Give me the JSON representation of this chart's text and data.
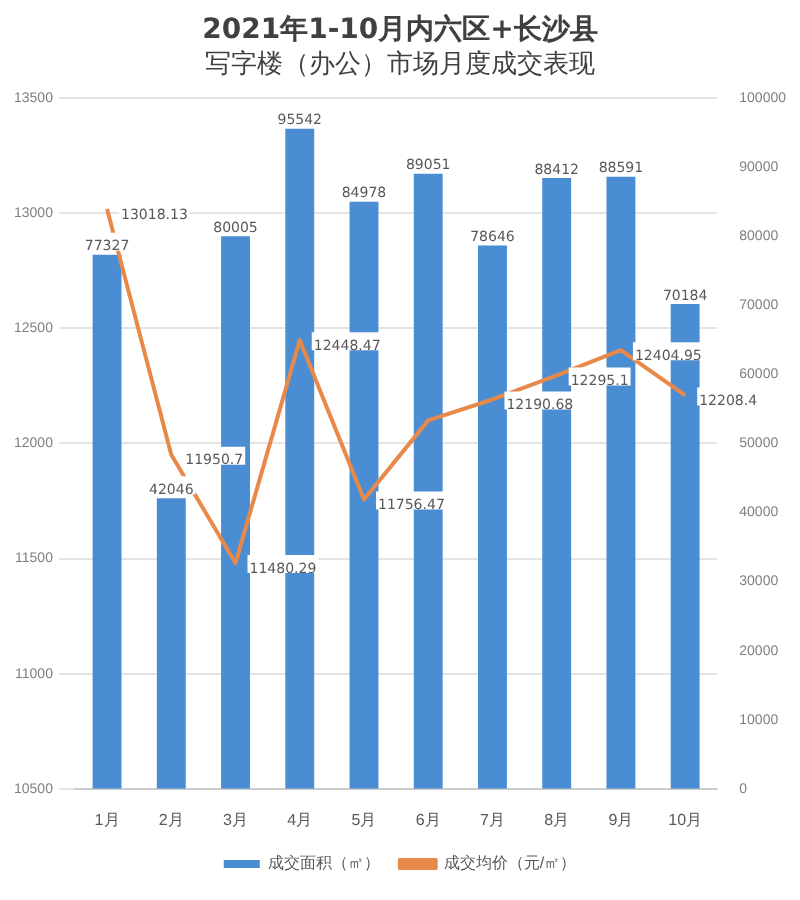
{
  "chart_data": {
    "type": "bar",
    "title": "2021年1-10月内六区+长沙县",
    "subtitle": "写字楼（办公）市场月度成交表现",
    "categories": [
      "1月",
      "2月",
      "3月",
      "4月",
      "5月",
      "6月",
      "7月",
      "8月",
      "9月",
      "10月"
    ],
    "series": [
      {
        "name": "成交面积（㎡）",
        "axis": "y2",
        "color": "#4a8dd2",
        "values": [
          77327,
          42046,
          80005,
          95542,
          84978,
          89051,
          78646,
          88412,
          88591,
          70184
        ],
        "value_labels": [
          "77327",
          "42046",
          "80005",
          "95542",
          "84978",
          "89051",
          "78646",
          "88412",
          "88591",
          "70184"
        ]
      },
      {
        "name": "成交均价（元/㎡）",
        "type": "line",
        "color": "#e8894a",
        "values": [
          13018.13,
          11950.7,
          11480.29,
          12448.47,
          11756.47,
          12100,
          12190.68,
          12295.1,
          12404.95,
          12208.4
        ],
        "value_labels": [
          "13018.13",
          "11950.7",
          "11480.29",
          "12448.47",
          "11756.47",
          null,
          "12190.68",
          "12295.1",
          "12404.95",
          "12208.4"
        ]
      }
    ],
    "ylim": [
      10500,
      13500
    ],
    "yticks": [
      10500,
      11000,
      11500,
      12000,
      12500,
      13000,
      13500
    ],
    "y2lim": [
      0,
      100000
    ],
    "y2ticks": [
      0,
      10000,
      20000,
      30000,
      40000,
      50000,
      60000,
      70000,
      80000,
      90000,
      100000
    ],
    "grid": "y",
    "legend": "bottom",
    "marker": "none"
  }
}
